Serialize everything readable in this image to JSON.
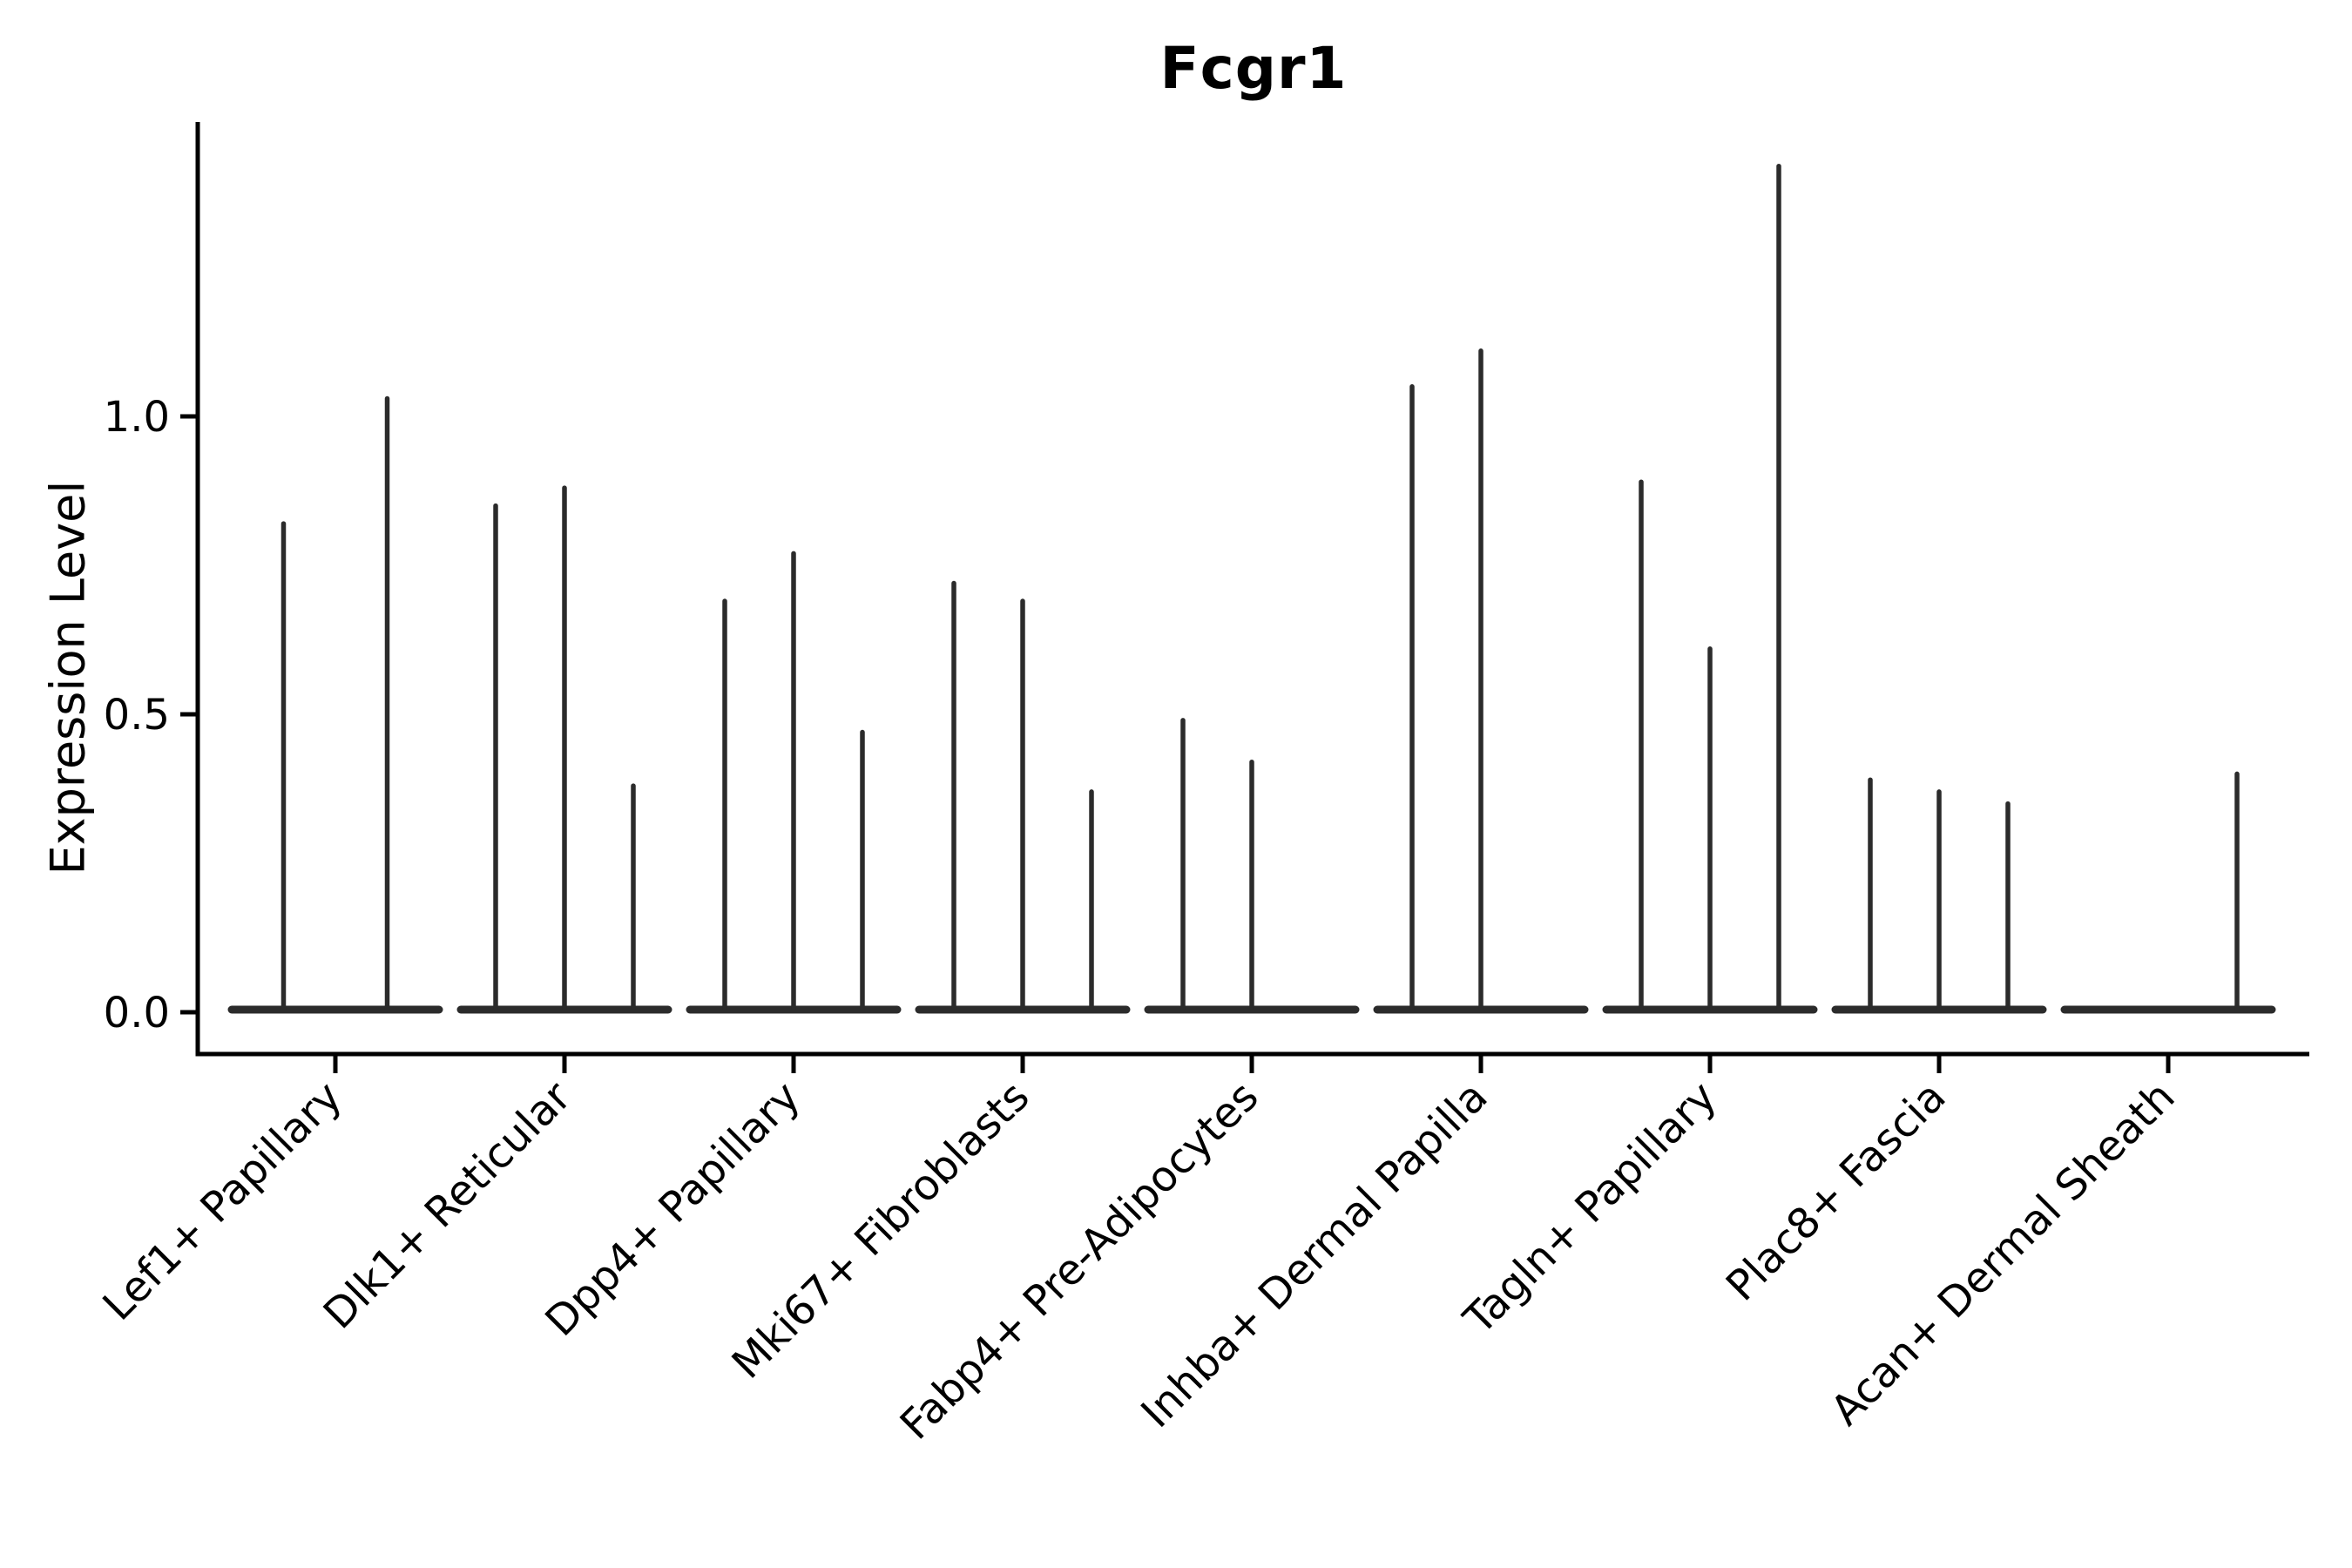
{
  "chart_data": {
    "type": "violin",
    "title": "Fcgr1",
    "ylabel": "Expression Level",
    "xlabel": "",
    "yticks": [
      "0.0",
      "0.5",
      "1.0"
    ],
    "ytick_values": [
      0.0,
      0.5,
      1.0
    ],
    "ylim": [
      -0.07,
      1.49
    ],
    "grid": false,
    "legend": "none",
    "categories": [
      "Lef1+ Papillary",
      "Dlk1+ Reticular",
      "Dpp4+ Papillary",
      "Mki67+ Fibroblasts",
      "Fabp4+ Pre-Adipocytes",
      "Inhba+ Dermal Papilla",
      "Tagln+ Papillary",
      "Plac8+ Fascia",
      "Acan+ Dermal Sheath"
    ],
    "groups": [
      {
        "category": "Lef1+ Papillary",
        "violins": [
          {
            "offset": -59.5,
            "peak": 0.82
          },
          {
            "offset": 59.5,
            "peak": 1.03
          }
        ]
      },
      {
        "category": "Dlk1+ Reticular",
        "violins": [
          {
            "offset": -79,
            "peak": 0.85
          },
          {
            "offset": 0,
            "peak": 0.88
          },
          {
            "offset": 79,
            "peak": 0.38
          }
        ]
      },
      {
        "category": "Dpp4+ Papillary",
        "violins": [
          {
            "offset": -79,
            "peak": 0.69
          },
          {
            "offset": 0,
            "peak": 0.77
          },
          {
            "offset": 79,
            "peak": 0.47
          }
        ]
      },
      {
        "category": "Mki67+ Fibroblasts",
        "violins": [
          {
            "offset": -79,
            "peak": 0.72
          },
          {
            "offset": 0,
            "peak": 0.69
          },
          {
            "offset": 79,
            "peak": 0.37
          }
        ]
      },
      {
        "category": "Fabp4+ Pre-Adipocytes",
        "violins": [
          {
            "offset": -79,
            "peak": 0.49
          },
          {
            "offset": 0,
            "peak": 0.42
          }
        ]
      },
      {
        "category": "Inhba+ Dermal Papilla",
        "violins": [
          {
            "offset": -79,
            "peak": 1.05
          },
          {
            "offset": 0,
            "peak": 1.11
          }
        ]
      },
      {
        "category": "Tagln+ Papillary",
        "violins": [
          {
            "offset": -79,
            "peak": 0.89
          },
          {
            "offset": 0,
            "peak": 0.61
          },
          {
            "offset": 79,
            "peak": 1.42
          }
        ]
      },
      {
        "category": "Plac8+ Fascia",
        "violins": [
          {
            "offset": -79,
            "peak": 0.39
          },
          {
            "offset": 0,
            "peak": 0.37
          },
          {
            "offset": 79,
            "peak": 0.35
          }
        ]
      },
      {
        "category": "Acan+ Dermal Sheath",
        "violins": [
          {
            "offset": 79,
            "peak": 0.4
          }
        ]
      }
    ],
    "style": {
      "ink_color": "#2b2b2b",
      "axis_color": "#000000",
      "background": "#ffffff"
    }
  }
}
